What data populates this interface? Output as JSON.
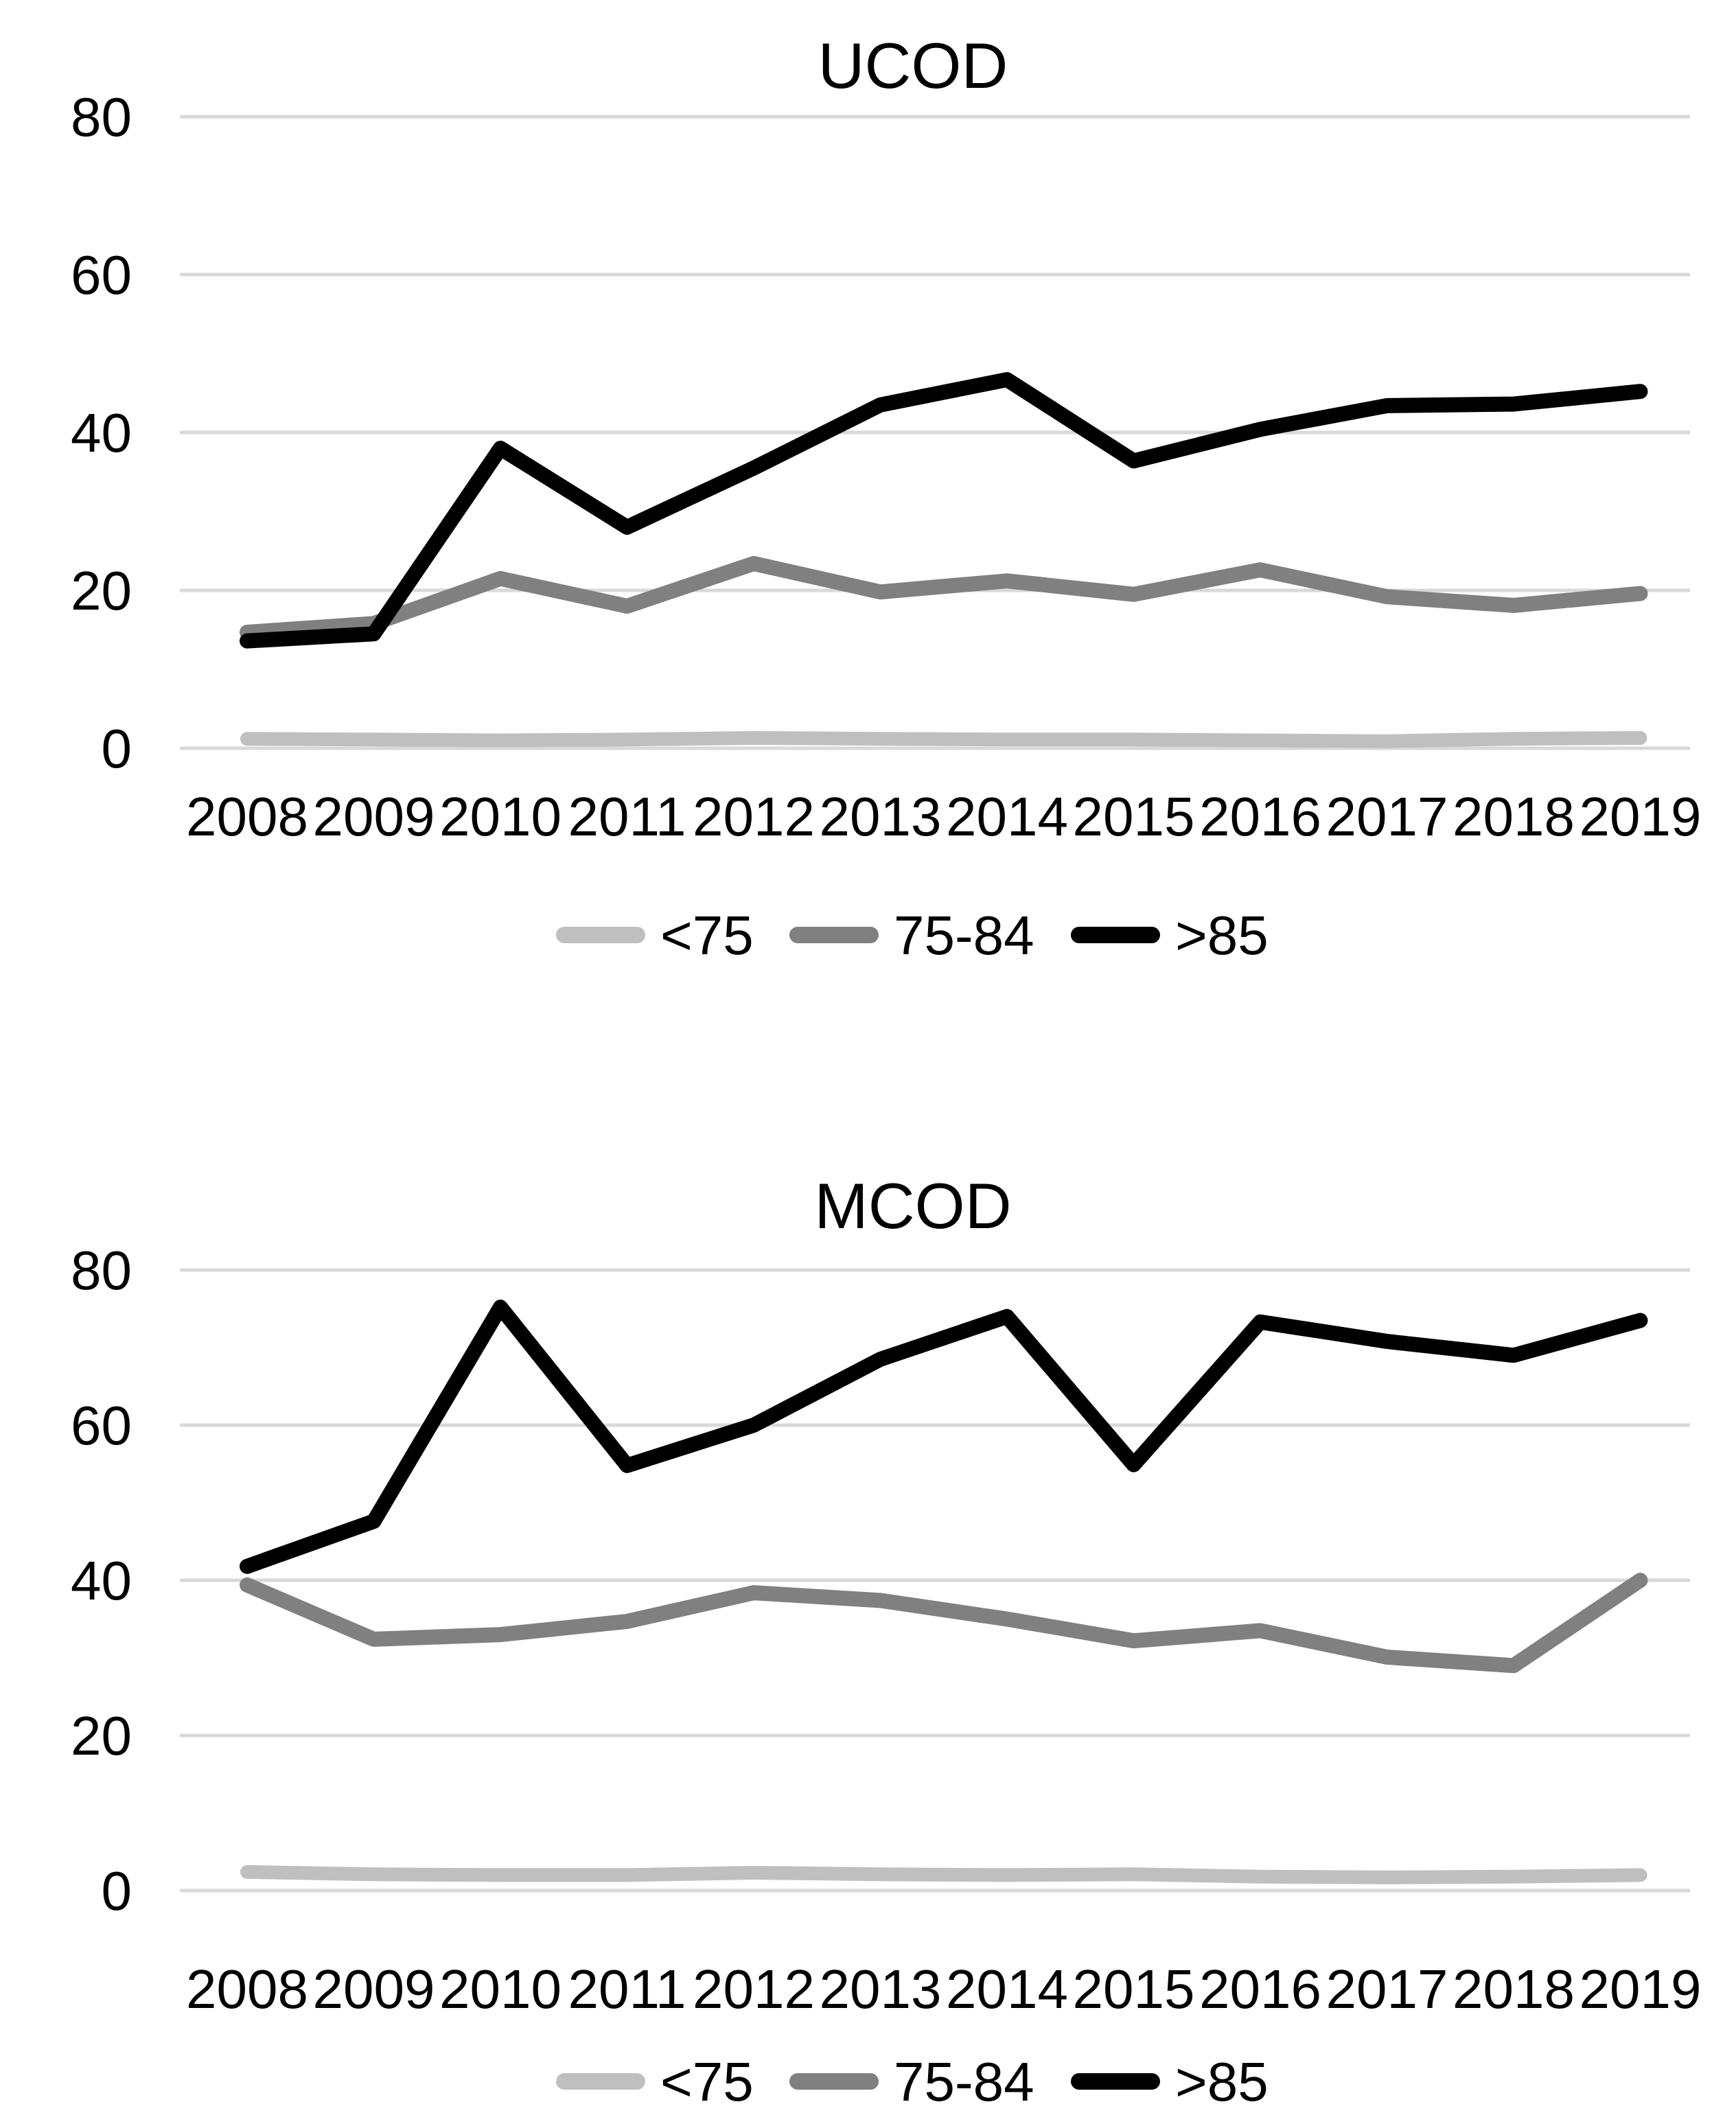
{
  "page": {
    "background": "#ffffff",
    "text_color": "#000000"
  },
  "chart_data": [
    {
      "id": "ucod",
      "type": "line",
      "title": "UCOD",
      "xlabel": "",
      "ylabel": "",
      "ylim": [
        0,
        80
      ],
      "yticks": [
        0,
        20,
        40,
        60,
        80
      ],
      "grid": true,
      "grid_color": "#d9d9d9",
      "legend_position": "bottom",
      "categories": [
        "2008",
        "2009",
        "2010",
        "2011",
        "2012",
        "2013",
        "2014",
        "2015",
        "2016",
        "2017",
        "2018",
        "2019"
      ],
      "series": [
        {
          "name": "<75",
          "color": "#bfbfbf",
          "values": [
            1.2,
            1.1,
            1.0,
            1.1,
            1.3,
            1.2,
            1.1,
            1.1,
            1.0,
            0.9,
            1.2,
            1.3
          ]
        },
        {
          "name": "75-84",
          "color": "#808080",
          "values": [
            14.7,
            15.8,
            21.5,
            18.0,
            23.4,
            19.8,
            21.2,
            19.5,
            22.6,
            19.2,
            18.1,
            19.6
          ]
        },
        {
          "name": ">85",
          "color": "#000000",
          "values": [
            13.6,
            14.5,
            38.0,
            28.0,
            35.5,
            43.5,
            46.7,
            36.4,
            40.4,
            43.4,
            43.6,
            45.2
          ]
        }
      ]
    },
    {
      "id": "mcod",
      "type": "line",
      "title": "MCOD",
      "xlabel": "",
      "ylabel": "",
      "ylim": [
        0,
        80
      ],
      "yticks": [
        0,
        20,
        40,
        60,
        80
      ],
      "grid": true,
      "grid_color": "#d9d9d9",
      "legend_position": "bottom",
      "categories": [
        "2008",
        "2009",
        "2010",
        "2011",
        "2012",
        "2013",
        "2014",
        "2015",
        "2016",
        "2017",
        "2018",
        "2019"
      ],
      "series": [
        {
          "name": "<75",
          "color": "#bfbfbf",
          "values": [
            2.4,
            2.1,
            2.0,
            2.0,
            2.3,
            2.1,
            2.0,
            2.1,
            1.8,
            1.7,
            1.8,
            2.0
          ]
        },
        {
          "name": "75-84",
          "color": "#808080",
          "values": [
            39.4,
            32.4,
            33.0,
            34.7,
            38.4,
            37.4,
            35.0,
            32.2,
            33.5,
            30.1,
            29.0,
            40.0
          ]
        },
        {
          "name": ">85",
          "color": "#000000",
          "values": [
            41.8,
            47.6,
            75.2,
            54.8,
            60.0,
            68.5,
            74.0,
            54.9,
            73.3,
            70.8,
            69.0,
            73.5
          ]
        }
      ]
    }
  ]
}
